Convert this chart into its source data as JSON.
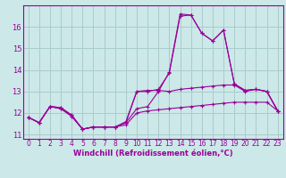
{
  "xlabel": "Windchill (Refroidissement éolien,°C)",
  "background_color": "#cce8e8",
  "grid_color": "#aacccc",
  "line_color": "#990099",
  "spine_color": "#990099",
  "xlim": [
    -0.5,
    23.5
  ],
  "ylim": [
    10.8,
    17.0
  ],
  "yticks": [
    11,
    12,
    13,
    14,
    15,
    16
  ],
  "xticks": [
    0,
    1,
    2,
    3,
    4,
    5,
    6,
    7,
    8,
    9,
    10,
    11,
    12,
    13,
    14,
    15,
    16,
    17,
    18,
    19,
    20,
    21,
    22,
    23
  ],
  "series1_x": [
    0,
    1,
    2,
    3,
    4,
    5,
    6,
    7,
    8,
    9,
    10,
    11,
    12,
    13,
    14,
    15,
    16,
    17,
    18,
    19,
    20,
    21,
    22,
    23
  ],
  "series1_y": [
    11.8,
    11.55,
    12.3,
    12.25,
    11.9,
    11.25,
    11.35,
    11.35,
    11.35,
    11.45,
    12.0,
    12.1,
    12.15,
    12.2,
    12.25,
    12.3,
    12.35,
    12.4,
    12.45,
    12.5,
    12.5,
    12.5,
    12.5,
    12.1
  ],
  "series2_x": [
    0,
    1,
    2,
    3,
    4,
    5,
    6,
    7,
    8,
    9,
    10,
    11,
    12,
    13,
    14,
    15,
    16,
    17,
    18,
    19,
    20,
    21,
    22,
    23
  ],
  "series2_y": [
    11.8,
    11.55,
    12.3,
    12.25,
    11.9,
    11.25,
    11.35,
    11.35,
    11.35,
    11.55,
    13.0,
    13.05,
    13.05,
    13.0,
    13.1,
    13.15,
    13.2,
    13.25,
    13.3,
    13.3,
    13.0,
    13.1,
    13.0,
    12.1
  ],
  "series3_x": [
    0,
    1,
    2,
    3,
    4,
    5,
    6,
    7,
    8,
    9,
    10,
    11,
    12,
    13,
    14,
    15,
    16,
    17,
    18,
    19,
    20,
    21,
    22,
    23
  ],
  "series3_y": [
    11.8,
    11.55,
    12.3,
    12.2,
    11.85,
    11.25,
    11.35,
    11.35,
    11.35,
    11.6,
    13.0,
    13.0,
    13.1,
    13.85,
    16.5,
    16.55,
    15.7,
    15.35,
    15.85,
    13.35,
    13.05,
    13.1,
    13.0,
    12.1
  ],
  "series4_x": [
    0,
    1,
    2,
    3,
    4,
    5,
    6,
    7,
    8,
    9,
    10,
    11,
    12,
    13,
    14,
    15,
    16,
    17,
    18,
    19,
    20,
    21,
    22,
    23
  ],
  "series4_y": [
    11.8,
    11.55,
    12.3,
    12.2,
    11.85,
    11.25,
    11.35,
    11.35,
    11.35,
    11.55,
    12.2,
    12.3,
    13.0,
    13.9,
    16.6,
    16.55,
    15.7,
    15.35,
    15.85,
    13.35,
    13.05,
    13.1,
    13.0,
    12.1
  ],
  "xlabel_fontsize": 6.0,
  "tick_fontsize": 5.5
}
